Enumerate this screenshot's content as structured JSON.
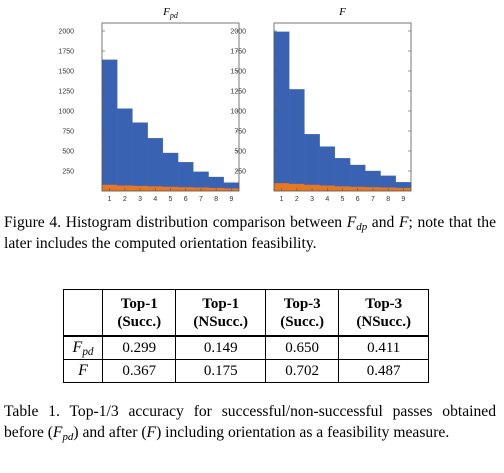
{
  "figure": {
    "caption_parts": [
      "Figure 4. Histogram distribution comparison between ",
      " and ",
      "; note that the later includes the computed orientation feasibility."
    ],
    "caption_math": [
      {
        "base": "F",
        "sub": "dp"
      },
      {
        "base": "F",
        "sub": ""
      }
    ]
  },
  "chart_data": [
    {
      "type": "bar",
      "stacked": true,
      "title": {
        "base": "F",
        "sub": "pd"
      },
      "categories": [
        "1",
        "2",
        "3",
        "4",
        "5",
        "6",
        "7",
        "8",
        "9"
      ],
      "series": [
        {
          "values": [
            80,
            70,
            65,
            60,
            55,
            50,
            45,
            40,
            35
          ],
          "color": "#e87722"
        },
        {
          "values": [
            1560,
            960,
            790,
            600,
            420,
            310,
            195,
            135,
            70
          ],
          "color": "#3a62b3"
        }
      ],
      "yticks": [
        250,
        500,
        750,
        1000,
        1250,
        1500,
        1750,
        2000
      ],
      "ylim": [
        0,
        2100
      ],
      "xlim": [
        0.5,
        9.5
      ],
      "grid": false
    },
    {
      "type": "bar",
      "stacked": true,
      "title": {
        "base": "F",
        "sub": ""
      },
      "categories": [
        "1",
        "2",
        "3",
        "4",
        "5",
        "6",
        "7",
        "8",
        "9"
      ],
      "series": [
        {
          "values": [
            100,
            90,
            80,
            70,
            60,
            55,
            50,
            45,
            40
          ],
          "color": "#e87722"
        },
        {
          "values": [
            1890,
            1180,
            630,
            485,
            350,
            270,
            200,
            145,
            70
          ],
          "color": "#3a62b3"
        }
      ],
      "yticks": [
        250,
        500,
        750,
        1000,
        1250,
        1500,
        1750,
        2000
      ],
      "ylim": [
        0,
        2100
      ],
      "xlim": [
        0.5,
        9.5
      ],
      "grid": false
    }
  ],
  "table": {
    "headers": [
      {
        "line1": "Top-1",
        "line2": "(Succ.)"
      },
      {
        "line1": "Top-1",
        "line2": "(NSucc.)"
      },
      {
        "line1": "Top-3",
        "line2": "(Succ.)"
      },
      {
        "line1": "Top-3",
        "line2": "(NSucc.)"
      }
    ],
    "rows": [
      {
        "label": {
          "base": "F",
          "sub": "pd"
        },
        "values": [
          "0.299",
          "0.149",
          "0.650",
          "0.411"
        ]
      },
      {
        "label": {
          "base": "F",
          "sub": ""
        },
        "values": [
          "0.367",
          "0.175",
          "0.702",
          "0.487"
        ]
      }
    ],
    "caption_parts": [
      "Table 1. Top-1/3 accuracy for successful/non-successful passes obtained before (",
      ") and after (",
      ") including orientation as a feasibility measure."
    ],
    "caption_math": [
      {
        "base": "F",
        "sub": "pd"
      },
      {
        "base": "F",
        "sub": ""
      }
    ]
  }
}
